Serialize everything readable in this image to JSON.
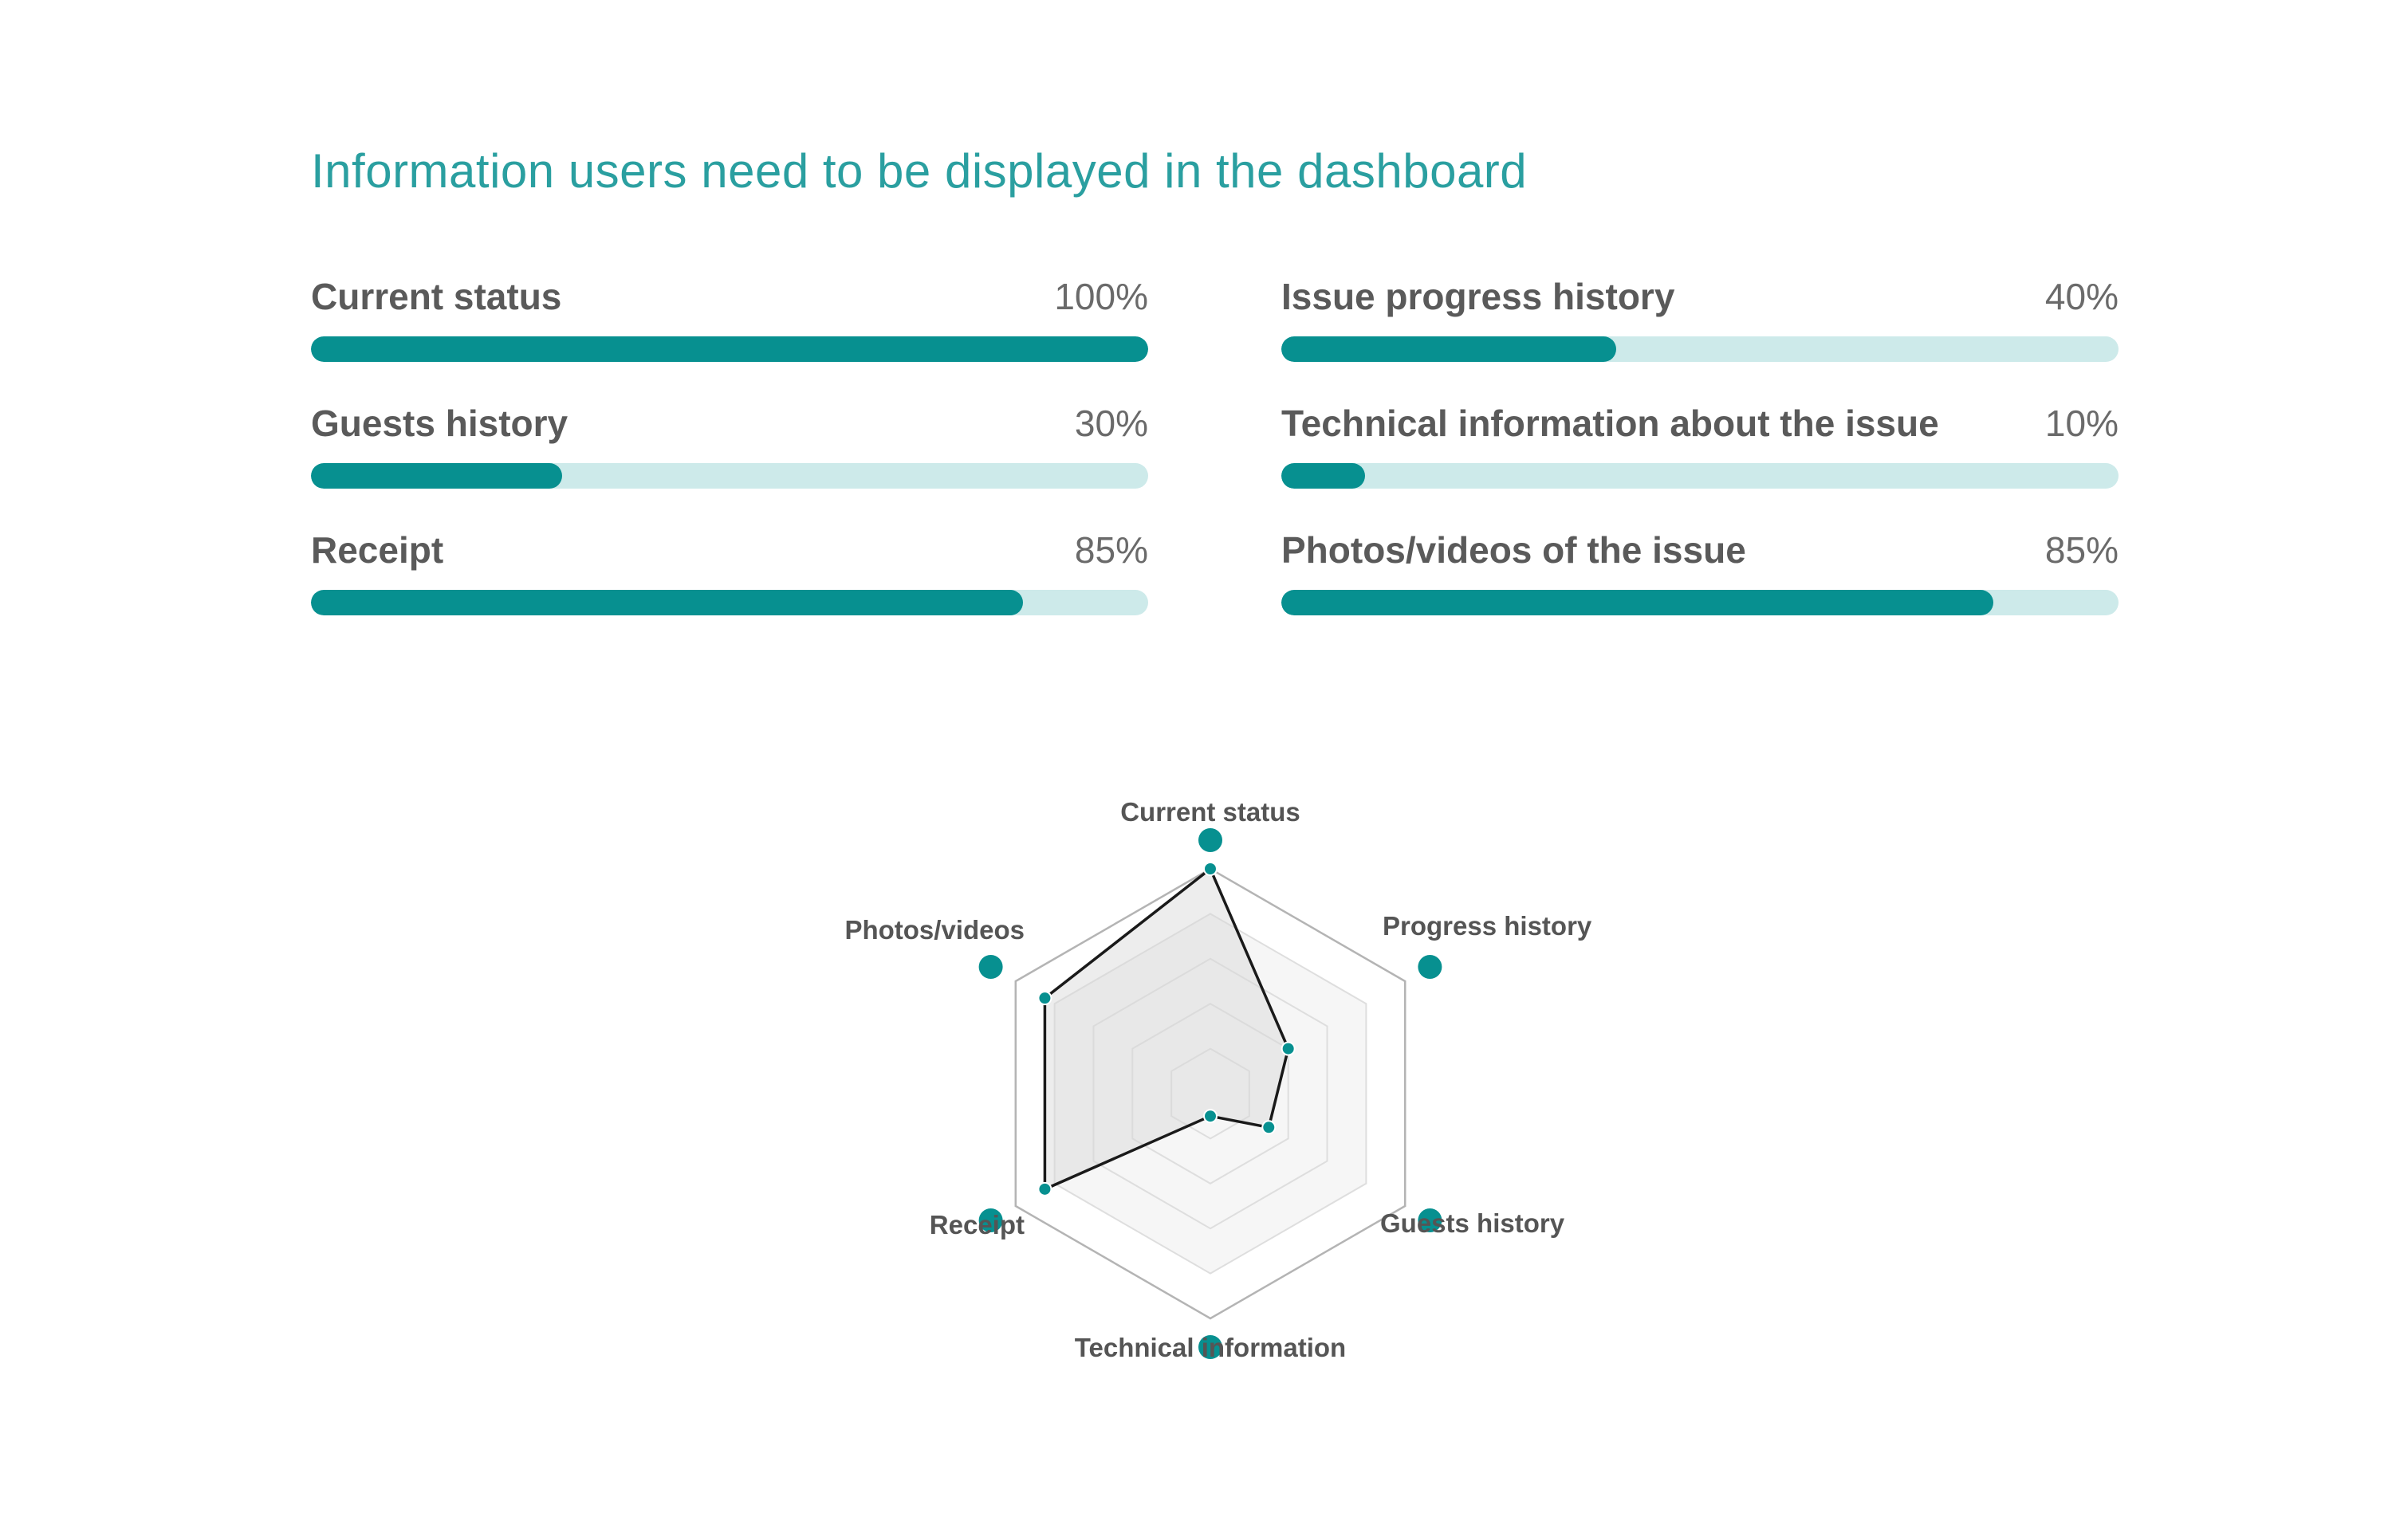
{
  "title": "Information users need to be displayed in the dashboard",
  "colors": {
    "accent": "#079090",
    "track": "#cdeaea",
    "title": "#2a9fa0",
    "text": "#5a5a5a"
  },
  "bars": [
    {
      "label": "Current status",
      "value": 100,
      "pct_label": "100%"
    },
    {
      "label": "Issue progress history",
      "value": 40,
      "pct_label": "40%"
    },
    {
      "label": "Guests history",
      "value": 30,
      "pct_label": "30%"
    },
    {
      "label": "Technical information about the issue",
      "value": 10,
      "pct_label": "10%"
    },
    {
      "label": "Receipt",
      "value": 85,
      "pct_label": "85%"
    },
    {
      "label": "Photos/videos of the issue",
      "value": 85,
      "pct_label": "85%"
    }
  ],
  "chart_data": {
    "type": "radar",
    "title": "",
    "axes": [
      "Current status",
      "Progress history",
      "Guests history",
      "Technical information",
      "Receipt",
      "Photos/videos"
    ],
    "values": [
      100,
      40,
      30,
      10,
      85,
      85
    ],
    "range": [
      0,
      100
    ],
    "grid_levels": [
      20,
      40,
      60,
      80,
      100
    ]
  }
}
